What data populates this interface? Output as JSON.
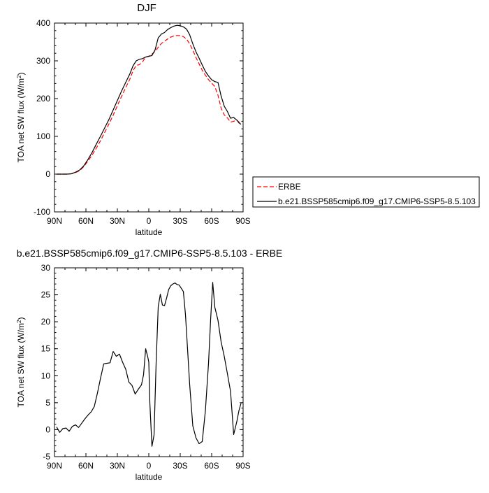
{
  "chart_data": [
    {
      "type": "line",
      "title": "DJF",
      "xlabel": "latitude",
      "ylabel": "TOA net SW flux (W/m²)",
      "xlim": [
        90,
        -90
      ],
      "ylim": [
        -100,
        400
      ],
      "xticks": [
        90,
        60,
        30,
        0,
        -30,
        -60,
        -90
      ],
      "xtick_labels": [
        "90N",
        "60N",
        "30N",
        "0",
        "30S",
        "60S",
        "90S"
      ],
      "yticks": [
        -100,
        0,
        100,
        200,
        300,
        400
      ],
      "ytick_labels": [
        "-100",
        "0",
        "100",
        "200",
        "300",
        "400"
      ],
      "grid": false,
      "legend_position": "right",
      "series": [
        {
          "name": "ERBE",
          "color": "#ff0000",
          "dash": "dashed",
          "x": [
            88,
            82,
            78,
            74,
            70,
            66,
            62,
            58,
            54,
            50,
            46,
            42,
            38,
            34,
            30,
            26,
            22,
            18,
            15,
            12,
            9,
            6,
            3,
            0,
            -3,
            -6,
            -9,
            -12,
            -15,
            -18,
            -21,
            -24,
            -27,
            -30,
            -33,
            -36,
            -39,
            -42,
            -45,
            -48,
            -51,
            -54,
            -57,
            -60,
            -63,
            -66,
            -69,
            -72,
            -75,
            -78,
            -81,
            -84,
            -86,
            -88
          ],
          "y": [
            0,
            0,
            0,
            1,
            4,
            9,
            20,
            35,
            51,
            69,
            89,
            111,
            133,
            156,
            181,
            206,
            229,
            252,
            274,
            288,
            290,
            297,
            310,
            312,
            318,
            325,
            336,
            346,
            352,
            358,
            363,
            366,
            367,
            367,
            364,
            358,
            345,
            328,
            309,
            292,
            275,
            262,
            250,
            241,
            232,
            209,
            175,
            157,
            149,
            138,
            140,
            143,
            138,
            132
          ]
        },
        {
          "name": "b.e21.BSSP585cmip6.f09_g17.CMIP6-SSP5-8.5.103",
          "color": "#000000",
          "dash": "solid",
          "x": [
            88,
            82,
            78,
            74,
            70,
            66,
            62,
            58,
            54,
            50,
            46,
            42,
            38,
            34,
            30,
            26,
            22,
            18,
            15,
            12,
            9,
            6,
            3,
            0,
            -3,
            -6,
            -9,
            -12,
            -15,
            -18,
            -21,
            -24,
            -27,
            -30,
            -33,
            -36,
            -39,
            -42,
            -45,
            -48,
            -51,
            -54,
            -57,
            -60,
            -63,
            -66,
            -69,
            -72,
            -75,
            -78,
            -81,
            -84,
            -86,
            -88
          ],
          "y": [
            0,
            0,
            0,
            1,
            5,
            11,
            22,
            39,
            58,
            80,
            101,
            123,
            145,
            170,
            195,
            220,
            243,
            266,
            287,
            300,
            304,
            306,
            310,
            312,
            314,
            329,
            361,
            371,
            375,
            383,
            388,
            392,
            394,
            393,
            390,
            384,
            369,
            345,
            324,
            307,
            289,
            272,
            260,
            250,
            245,
            243,
            207,
            180,
            166,
            148,
            150,
            143,
            136,
            132
          ]
        }
      ]
    },
    {
      "type": "line",
      "title": "b.e21.BSSP585cmip6.f09_g17.CMIP6-SSP5-8.5.103 - ERBE",
      "xlabel": "latitude",
      "ylabel": "TOA net SW flux (W/m²)",
      "xlim": [
        90,
        -90
      ],
      "ylim": [
        -5,
        30
      ],
      "xticks": [
        90,
        60,
        30,
        0,
        -30,
        -60,
        -90
      ],
      "xtick_labels": [
        "90N",
        "60N",
        "30N",
        "0",
        "30S",
        "60S",
        "90S"
      ],
      "yticks": [
        -5,
        0,
        5,
        10,
        15,
        20,
        25,
        30
      ],
      "ytick_labels": [
        "-5",
        "0",
        "5",
        "10",
        "15",
        "20",
        "25",
        "30"
      ],
      "grid": false,
      "series": [
        {
          "color": "#000000",
          "dash": "solid",
          "x": [
            88,
            85,
            82,
            79,
            76,
            73,
            70,
            67,
            64,
            61,
            58,
            55,
            52,
            49,
            46,
            43,
            40,
            37,
            34,
            31,
            28,
            25,
            22,
            19,
            16,
            13,
            10,
            7,
            5,
            3,
            1,
            0,
            -1,
            -3,
            -5,
            -7,
            -9,
            -11,
            -13,
            -15,
            -17,
            -19,
            -21,
            -23,
            -25,
            -27,
            -29,
            -31,
            -33,
            -35,
            -37,
            -39,
            -42,
            -45,
            -48,
            -51,
            -54,
            -57,
            -59,
            -61,
            -63,
            -66,
            -69,
            -72,
            -75,
            -78,
            -81,
            -84,
            -86,
            -88
          ],
          "y": [
            0.5,
            -0.5,
            0.2,
            0.3,
            -0.3,
            0.6,
            0.9,
            0.4,
            1.2,
            2.0,
            2.7,
            3.3,
            4.3,
            6.8,
            9.6,
            12.2,
            12.3,
            12.4,
            14.5,
            13.6,
            14.0,
            12.5,
            11.2,
            8.8,
            8.2,
            6.6,
            7.5,
            8.3,
            10.2,
            15.0,
            13.5,
            12.5,
            5.0,
            -3.1,
            -1.0,
            12.4,
            22.8,
            25.1,
            23.1,
            23.0,
            24.4,
            26.0,
            26.7,
            27.0,
            27.2,
            26.9,
            26.8,
            26.2,
            25.6,
            21.3,
            14.9,
            8.4,
            0.7,
            -1.5,
            -2.6,
            -2.2,
            3.5,
            12.3,
            20.4,
            27.3,
            22.7,
            20.3,
            16.3,
            13.6,
            10.4,
            7.1,
            -0.9,
            1.5,
            3.5,
            4.9
          ]
        }
      ]
    }
  ]
}
